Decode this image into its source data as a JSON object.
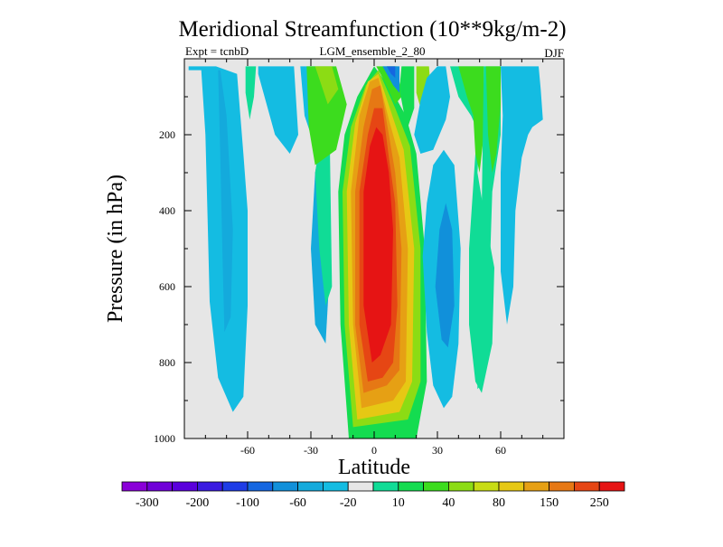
{
  "chart_data": {
    "type": "contour",
    "title": "Meridional Streamfunction (10**9kg/m-2)",
    "subtitle_left": "Expt = tcnbD",
    "subtitle_center": "LGM_ensemble_2_80",
    "subtitle_right": "DJF",
    "xlabel": "Latitude",
    "ylabel": "Pressure (in hPa)",
    "xlim": [
      -90,
      90
    ],
    "ylim": [
      0,
      1000
    ],
    "y_inverted": true,
    "x_ticks": [
      -60,
      -30,
      0,
      30,
      60
    ],
    "x_tick_labels": [
      "-60",
      "-30",
      "0",
      "30",
      "60"
    ],
    "y_ticks": [
      200,
      400,
      600,
      800,
      1000
    ],
    "y_tick_labels": [
      "200",
      "400",
      "600",
      "800",
      "1000"
    ],
    "background_color": "#e6e6e6",
    "colorbar": {
      "colors": [
        "#8a00d8",
        "#7000d8",
        "#5a00dc",
        "#3a1ae0",
        "#1e3ce6",
        "#1466e0",
        "#1190da",
        "#14aadc",
        "#14bce2",
        "#e6e6e6",
        "#10dc96",
        "#14dc50",
        "#3cdc1e",
        "#8cdc14",
        "#c8dc14",
        "#e6c814",
        "#e6a014",
        "#e67814",
        "#e64614",
        "#e61414"
      ],
      "labels": [
        "-300",
        "-200",
        "-100",
        "-60",
        "-20",
        "10",
        "40",
        "80",
        "150",
        "250"
      ]
    },
    "regions": [
      {
        "value": -20,
        "color": "#14bce2",
        "points": [
          [
            -88,
            30
          ],
          [
            -82,
            30
          ],
          [
            -80,
            200
          ],
          [
            -79,
            420
          ],
          [
            -78,
            640
          ],
          [
            -74,
            840
          ],
          [
            -67,
            930
          ],
          [
            -62,
            890
          ],
          [
            -60,
            650
          ],
          [
            -60,
            400
          ],
          [
            -62,
            250
          ],
          [
            -65,
            40
          ],
          [
            -75,
            20
          ],
          [
            -88,
            20
          ]
        ]
      },
      {
        "value": -60,
        "color": "#14aadc",
        "points": [
          [
            -78,
            30
          ],
          [
            -74,
            30
          ],
          [
            -73,
            250
          ],
          [
            -72,
            500
          ],
          [
            -71,
            720
          ],
          [
            -68,
            680
          ],
          [
            -67,
            450
          ],
          [
            -70,
            150
          ],
          [
            -73,
            30
          ]
        ]
      },
      {
        "value": 40,
        "color": "#10dc96",
        "points": [
          [
            -61,
            20
          ],
          [
            -56,
            20
          ],
          [
            -57,
            100
          ],
          [
            -59,
            160
          ],
          [
            -61,
            90
          ]
        ]
      },
      {
        "value": -20,
        "color": "#14bce2",
        "points": [
          [
            -55,
            20
          ],
          [
            -38,
            20
          ],
          [
            -36,
            200
          ],
          [
            -40,
            250
          ],
          [
            -47,
            200
          ],
          [
            -52,
            100
          ],
          [
            -55,
            40
          ]
        ]
      },
      {
        "value": -20,
        "color": "#14bce2",
        "points": [
          [
            -35,
            20
          ],
          [
            -28,
            20
          ],
          [
            -26,
            80
          ],
          [
            -27,
            150
          ],
          [
            -30,
            200
          ],
          [
            -33,
            150
          ]
        ]
      },
      {
        "value": -60,
        "color": "#14aadc",
        "points": [
          [
            -30,
            500
          ],
          [
            -28,
            300
          ],
          [
            -25,
            200
          ],
          [
            -22,
            250
          ],
          [
            -21,
            550
          ],
          [
            -23,
            750
          ],
          [
            -28,
            700
          ]
        ]
      },
      {
        "value": 40,
        "color": "#10dc96",
        "points": [
          [
            -28,
            300
          ],
          [
            -25,
            200
          ],
          [
            -21,
            230
          ],
          [
            -20,
            600
          ],
          [
            -23,
            650
          ],
          [
            -26,
            500
          ]
        ]
      },
      {
        "value": 80,
        "color": "#3cdc1e",
        "points": [
          [
            -32,
            20
          ],
          [
            -18,
            20
          ],
          [
            -13,
            120
          ],
          [
            -18,
            240
          ],
          [
            -28,
            280
          ],
          [
            -31,
            180
          ]
        ]
      },
      {
        "value": 150,
        "color": "#8cdc14",
        "points": [
          [
            -28,
            20
          ],
          [
            -20,
            20
          ],
          [
            -17,
            80
          ],
          [
            -22,
            120
          ]
        ]
      },
      {
        "value": 40,
        "color": "#14dc50",
        "points": [
          [
            -12,
            1000
          ],
          [
            -16,
            700
          ],
          [
            -17,
            350
          ],
          [
            -14,
            200
          ],
          [
            -8,
            100
          ],
          [
            0,
            20
          ],
          [
            8,
            80
          ],
          [
            15,
            150
          ],
          [
            20,
            250
          ],
          [
            24,
            500
          ],
          [
            25,
            850
          ],
          [
            20,
            1000
          ]
        ]
      },
      {
        "value": 80,
        "color": "#8cdc14",
        "points": [
          [
            -10,
            970
          ],
          [
            -14,
            700
          ],
          [
            -15,
            350
          ],
          [
            -11,
            180
          ],
          [
            -4,
            70
          ],
          [
            2,
            30
          ],
          [
            10,
            130
          ],
          [
            17,
            230
          ],
          [
            22,
            500
          ],
          [
            22,
            850
          ],
          [
            16,
            950
          ]
        ]
      },
      {
        "value": 150,
        "color": "#e6c814",
        "points": [
          [
            -8,
            950
          ],
          [
            -12,
            700
          ],
          [
            -13,
            350
          ],
          [
            -9,
            170
          ],
          [
            -3,
            60
          ],
          [
            2,
            40
          ],
          [
            8,
            140
          ],
          [
            14,
            240
          ],
          [
            19,
            500
          ],
          [
            18,
            850
          ],
          [
            12,
            930
          ]
        ]
      },
      {
        "value": 200,
        "color": "#e6a014",
        "points": [
          [
            -6,
            920
          ],
          [
            -10,
            700
          ],
          [
            -11,
            350
          ],
          [
            -7,
            150
          ],
          [
            -2,
            60
          ],
          [
            2,
            50
          ],
          [
            7,
            160
          ],
          [
            12,
            260
          ],
          [
            16,
            500
          ],
          [
            15,
            850
          ],
          [
            9,
            900
          ]
        ]
      },
      {
        "value": 250,
        "color": "#e67814",
        "points": [
          [
            -5,
            880
          ],
          [
            -9,
            700
          ],
          [
            -9,
            350
          ],
          [
            -5,
            180
          ],
          [
            -1,
            80
          ],
          [
            3,
            70
          ],
          [
            7,
            200
          ],
          [
            10,
            300
          ],
          [
            13,
            500
          ],
          [
            12,
            820
          ],
          [
            6,
            860
          ]
        ]
      },
      {
        "value": 280,
        "color": "#e64614",
        "points": [
          [
            -3,
            850
          ],
          [
            -7,
            700
          ],
          [
            -7,
            350
          ],
          [
            -3,
            200
          ],
          [
            0,
            130
          ],
          [
            4,
            130
          ],
          [
            7,
            260
          ],
          [
            10,
            380
          ],
          [
            11,
            650
          ],
          [
            9,
            800
          ],
          [
            4,
            840
          ]
        ]
      },
      {
        "value": 300,
        "color": "#e61414",
        "points": [
          [
            -1,
            800
          ],
          [
            -5,
            650
          ],
          [
            -5,
            350
          ],
          [
            -2,
            230
          ],
          [
            1,
            180
          ],
          [
            4,
            200
          ],
          [
            7,
            300
          ],
          [
            9,
            450
          ],
          [
            8,
            700
          ],
          [
            3,
            780
          ]
        ]
      },
      {
        "value": 40,
        "color": "#3cdc1e",
        "points": [
          [
            1,
            20
          ],
          [
            11,
            20
          ],
          [
            13,
            100
          ],
          [
            10,
            120
          ],
          [
            5,
            60
          ]
        ]
      },
      {
        "value": -60,
        "color": "#1190da",
        "points": [
          [
            4,
            20
          ],
          [
            12,
            20
          ],
          [
            12,
            90
          ],
          [
            9,
            70
          ],
          [
            6,
            40
          ]
        ]
      },
      {
        "value": -100,
        "color": "#1466e0",
        "points": [
          [
            6,
            20
          ],
          [
            10,
            20
          ],
          [
            10,
            50
          ],
          [
            8,
            40
          ]
        ]
      },
      {
        "value": 40,
        "color": "#14dc50",
        "points": [
          [
            13,
            20
          ],
          [
            19,
            20
          ],
          [
            19,
            130
          ],
          [
            16,
            180
          ],
          [
            14,
            140
          ],
          [
            12,
            80
          ]
        ]
      },
      {
        "value": 80,
        "color": "#8cdc14",
        "points": [
          [
            20,
            20
          ],
          [
            26,
            20
          ],
          [
            27,
            100
          ],
          [
            23,
            150
          ],
          [
            20,
            90
          ]
        ]
      },
      {
        "value": -20,
        "color": "#14bce2",
        "points": [
          [
            25,
            50
          ],
          [
            30,
            20
          ],
          [
            34,
            20
          ],
          [
            36,
            100
          ],
          [
            34,
            160
          ],
          [
            28,
            240
          ],
          [
            22,
            250
          ],
          [
            19,
            200
          ],
          [
            22,
            110
          ]
        ]
      },
      {
        "value": -20,
        "color": "#14bce2",
        "points": [
          [
            23,
            520
          ],
          [
            25,
            380
          ],
          [
            28,
            280
          ],
          [
            33,
            240
          ],
          [
            38,
            280
          ],
          [
            41,
            500
          ],
          [
            40,
            750
          ],
          [
            37,
            890
          ],
          [
            33,
            920
          ],
          [
            28,
            860
          ],
          [
            25,
            720
          ]
        ]
      },
      {
        "value": -60,
        "color": "#1190da",
        "points": [
          [
            29,
            600
          ],
          [
            31,
            450
          ],
          [
            34,
            380
          ],
          [
            37,
            450
          ],
          [
            38,
            650
          ],
          [
            35,
            760
          ],
          [
            32,
            740
          ]
        ]
      },
      {
        "value": 40,
        "color": "#10dc96",
        "points": [
          [
            36,
            20
          ],
          [
            52,
            20
          ],
          [
            51,
            130
          ],
          [
            48,
            250
          ],
          [
            45,
            500
          ],
          [
            45,
            700
          ],
          [
            48,
            850
          ],
          [
            51,
            880
          ],
          [
            56,
            750
          ],
          [
            57,
            550
          ],
          [
            52,
            400
          ],
          [
            49,
            300
          ],
          [
            50,
            200
          ],
          [
            46,
            150
          ],
          [
            40,
            100
          ]
        ]
      },
      {
        "value": 80,
        "color": "#3cdc1e",
        "points": [
          [
            40,
            20
          ],
          [
            52,
            20
          ],
          [
            52,
            200
          ],
          [
            50,
            300
          ],
          [
            48,
            250
          ],
          [
            47,
            150
          ],
          [
            44,
            100
          ]
        ]
      },
      {
        "value": 40,
        "color": "#10dc96",
        "points": [
          [
            52,
            20
          ],
          [
            60,
            20
          ],
          [
            60,
            200
          ],
          [
            56,
            350
          ],
          [
            54,
            700
          ],
          [
            52,
            850
          ],
          [
            49,
            870
          ],
          [
            49,
            600
          ],
          [
            51,
            400
          ]
        ]
      },
      {
        "value": -20,
        "color": "#14bce2",
        "points": [
          [
            60,
            20
          ],
          [
            78,
            20
          ],
          [
            79,
            80
          ],
          [
            80,
            160
          ],
          [
            75,
            180
          ],
          [
            73,
            200
          ],
          [
            70,
            260
          ],
          [
            67,
            400
          ],
          [
            66,
            600
          ],
          [
            63,
            700
          ],
          [
            60,
            560
          ],
          [
            60,
            300
          ],
          [
            61,
            150
          ]
        ]
      },
      {
        "value": 40,
        "color": "#3cdc1e",
        "points": [
          [
            53,
            20
          ],
          [
            60,
            20
          ],
          [
            60,
            120
          ],
          [
            58,
            250
          ],
          [
            56,
            300
          ],
          [
            54,
            200
          ]
        ]
      }
    ]
  }
}
